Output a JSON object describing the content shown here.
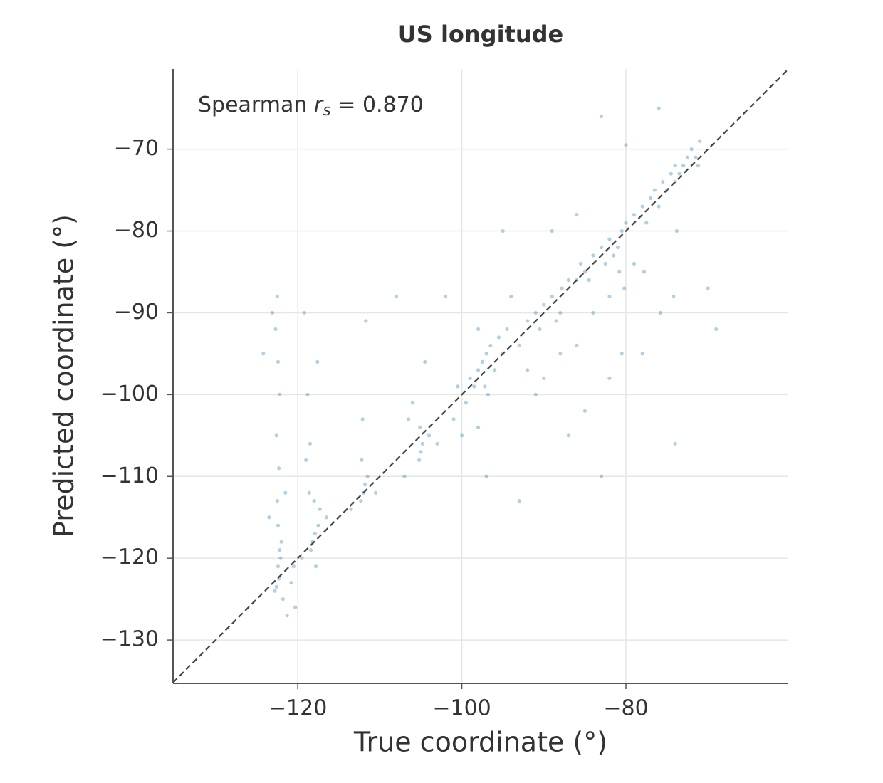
{
  "chart_data": {
    "type": "scatter",
    "title": "US longitude",
    "x_label": "True coordinate (°)",
    "y_label": "Predicted coordinate (°)",
    "annotation": {
      "prefix": "Spearman",
      "symbol": "r",
      "subscript": "s",
      "suffix": "= 0.870"
    },
    "color": "#1f77b4",
    "grid": true,
    "xlim": [
      -135.2,
      -60.3
    ],
    "ylim": [
      -135.3,
      -60.2
    ],
    "xticks": [
      {
        "value": -120,
        "label": "−120"
      },
      {
        "value": -100,
        "label": "−100"
      },
      {
        "value": -80,
        "label": "−80"
      }
    ],
    "yticks": [
      {
        "value": -130,
        "label": "−130"
      },
      {
        "value": -120,
        "label": "−120"
      },
      {
        "value": -110,
        "label": "−110"
      },
      {
        "value": -100,
        "label": "−100"
      },
      {
        "value": -90,
        "label": "−90"
      },
      {
        "value": -80,
        "label": "−80"
      },
      {
        "value": -70,
        "label": "−70"
      }
    ],
    "x": [
      -122.4,
      -122.3,
      -122.1,
      -122.6,
      -122.2,
      -122.8,
      -122.0,
      -122.4,
      -122.5,
      -122.3,
      -122.6,
      -122.2,
      -122.4,
      -122.7,
      -122.5,
      -123.1,
      -121.8,
      -121.3,
      -120.8,
      -120.5,
      -121.5,
      -123.5,
      -124.2,
      -120.3,
      -118.2,
      -117.9,
      -118.4,
      -117.5,
      -118.0,
      -118.6,
      -117.8,
      -117.3,
      -119.0,
      -118.5,
      -116.5,
      -119.5,
      -118.8,
      -117.6,
      -119.2,
      -112.0,
      -111.8,
      -112.3,
      -111.5,
      -112.1,
      -111.7,
      -112.2,
      -113.5,
      -110.5,
      -105.0,
      -104.8,
      -105.2,
      -105.1,
      -106.5,
      -106.0,
      -104.0,
      -103.0,
      -107.0,
      -104.5,
      -98.0,
      -97.5,
      -97.0,
      -96.5,
      -98.5,
      -99.0,
      -96.0,
      -95.5,
      -95.0,
      -94.5,
      -97.2,
      -99.5,
      -100.5,
      -101.0,
      -100.0,
      -98.0,
      -96.8,
      -93.0,
      -92.0,
      -91.0,
      -90.5,
      -90.0,
      -89.0,
      -88.0,
      -88.5,
      -87.8,
      -87.0,
      -86.0,
      -85.5,
      -85.0,
      -84.0,
      -84.5,
      -83.0,
      -82.5,
      -82.0,
      -81.5,
      -81.0,
      -80.5,
      -80.0,
      -80.8,
      -80.2,
      -79.0,
      -78.0,
      -77.5,
      -77.0,
      -76.5,
      -76.0,
      -75.5,
      -75.0,
      -74.5,
      -74.0,
      -74.0,
      -73.5,
      -73.0,
      -72.5,
      -72.0,
      -71.5,
      -71.0,
      -71.2,
      -73.8,
      -74.2,
      -75.8,
      -77.8,
      -80.5,
      -85.0,
      -90.0,
      -94.0,
      -95.0,
      -102.0,
      -108.0,
      -89.0,
      -86.0,
      -82.0,
      -83.0,
      -87.0,
      -93.0,
      -76.0,
      -80.0,
      -83.0,
      -69.0,
      -70.0,
      -78.0,
      -74.0,
      -97.0,
      -91.0,
      -88.0,
      -86.0,
      -84.0,
      -82.0,
      -79.0,
      -92.0,
      -98.0
    ],
    "y": [
      -121,
      -122.5,
      -120,
      -123.5,
      -119,
      -124,
      -118,
      -116,
      -113,
      -109,
      -105,
      -100,
      -96,
      -92,
      -88,
      -90,
      -125,
      -127,
      -123,
      -121,
      -112,
      -115,
      -95,
      -126,
      -118,
      -117,
      -119,
      -116,
      -113,
      -112,
      -121,
      -114,
      -108,
      -106,
      -115,
      -120,
      -100,
      -96,
      -90,
      -112,
      -111,
      -113,
      -110,
      -103,
      -91,
      -108,
      -114,
      -112,
      -107,
      -106,
      -108,
      -104,
      -103,
      -101,
      -105,
      -106,
      -110,
      -96,
      -97,
      -96,
      -95,
      -94,
      -99,
      -98,
      -97,
      -93,
      -95,
      -92,
      -99,
      -101,
      -99,
      -103,
      -105,
      -92,
      -100,
      -94,
      -91,
      -90,
      -92,
      -89,
      -88,
      -90,
      -91,
      -87,
      -86,
      -86,
      -84,
      -85,
      -83,
      -86,
      -82,
      -84,
      -81,
      -83,
      -82,
      -80,
      -79,
      -85,
      -87,
      -78,
      -77,
      -79,
      -76,
      -75,
      -77,
      -74,
      -75,
      -73,
      -74,
      -72,
      -73,
      -72,
      -71,
      -70,
      -71,
      -69,
      -72,
      -80,
      -88,
      -90,
      -85,
      -95,
      -102,
      -98,
      -88,
      -80,
      -88,
      -88,
      -80,
      -78,
      -98,
      -110,
      -105,
      -113,
      -65,
      -69.5,
      -66,
      -92,
      -87,
      -95,
      -106,
      -110,
      -100,
      -95,
      -94,
      -90,
      -88,
      -84,
      -97,
      -104
    ]
  }
}
